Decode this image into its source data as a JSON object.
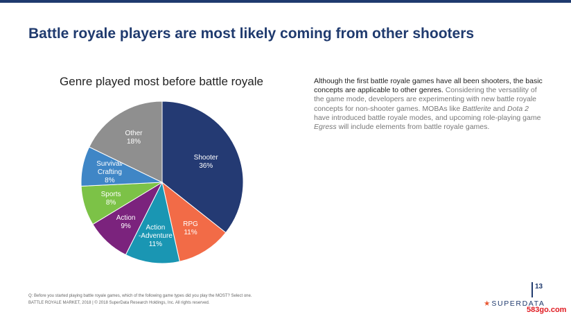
{
  "slide": {
    "title": "Battle royale players are most likely coming from other shooters",
    "page_number": "13"
  },
  "chart_data": {
    "type": "pie",
    "title": "Genre played most before battle royale",
    "unit": "%",
    "slices": [
      {
        "label": "Shooter",
        "value": 36,
        "display": "36%",
        "color": "#243a73"
      },
      {
        "label": "RPG",
        "value": 11,
        "display": "11%",
        "color": "#f26b47"
      },
      {
        "label": "Action -Adventure",
        "value": 11,
        "display": "11%",
        "color": "#1a96b3"
      },
      {
        "label": "Action",
        "value": 9,
        "display": "9%",
        "color": "#7b237d"
      },
      {
        "label": "Sports",
        "value": 8,
        "display": "8%",
        "color": "#7cc247"
      },
      {
        "label": "Survival/ Crafting",
        "value": 8,
        "display": "8%",
        "color": "#3f86c6"
      },
      {
        "label": "Other",
        "value": 18,
        "display": "18%",
        "color": "#8f8f8f"
      }
    ]
  },
  "description": {
    "lead": "Although the first battle royale games have all been shooters, the basic concepts are applicable to other genres.",
    "body_1": " Considering the versatility of the game mode, developers are experimenting with new battle royale concepts for non-shooter games. MOBAs like ",
    "italic_1": "Battlerite",
    "body_2": " and ",
    "italic_2": "Dota 2",
    "body_3": " have introduced battle royale modes, and upcoming role-playing game ",
    "italic_3": "Egress",
    "body_4": " will include elements from battle royale games."
  },
  "footer": {
    "question": "Q: Before you started playing battle royale games, which of the following game types did you play the MOST? Select one.",
    "source": "BATTLE ROYALE MARKET, 2018  |  © 2018 SuperData Research Holdings, Inc. All rights reserved."
  },
  "brand": {
    "star": "★",
    "name": "SUPERDATA"
  },
  "watermark": "583go.com"
}
